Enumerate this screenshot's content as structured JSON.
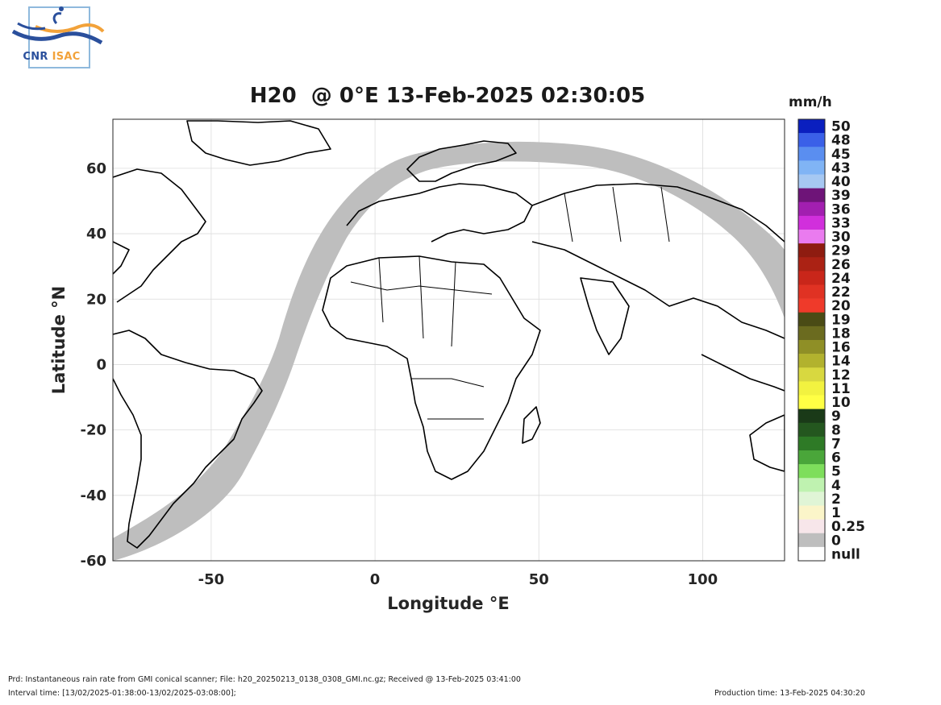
{
  "logo": {
    "text_part1": "CNR",
    "text_part2": "ISAC"
  },
  "title": "H20  @ 0°E 13-Feb-2025 02:30:05",
  "units": "mm/h",
  "map": {
    "xlabel": "Longitude °E",
    "ylabel": "Latitude °N",
    "xlim": [
      -80,
      125
    ],
    "ylim": [
      -60,
      75
    ],
    "xticks": [
      -50,
      0,
      50,
      100
    ],
    "yticks": [
      -60,
      -40,
      -20,
      0,
      20,
      40,
      60
    ],
    "grid": true,
    "swath_color": "#bebebe",
    "coast_color": "#000000"
  },
  "colorbar": {
    "labels": [
      "50",
      "48",
      "45",
      "43",
      "40",
      "39",
      "36",
      "33",
      "30",
      "29",
      "26",
      "24",
      "22",
      "20",
      "19",
      "18",
      "16",
      "14",
      "12",
      "11",
      "10",
      "9",
      "8",
      "7",
      "6",
      "5",
      "4",
      "2",
      "1",
      "0.25",
      "0",
      "null"
    ],
    "colors": [
      "#0a1fbf",
      "#3a60e8",
      "#5a8ef0",
      "#80b4f5",
      "#a6c8f2",
      "#6e1478",
      "#a21fb0",
      "#d12fdc",
      "#ea7bef",
      "#8e1c10",
      "#ab2214",
      "#c9261a",
      "#e03223",
      "#ef3a2a",
      "#4a4b15",
      "#6b6b1f",
      "#8f8f26",
      "#b2b22e",
      "#d8d840",
      "#f2f240",
      "#ffff44",
      "#1a3a18",
      "#24571f",
      "#2e7a26",
      "#4aa63a",
      "#7ede5c",
      "#bff2b0",
      "#e0f5d6",
      "#fbf5c9",
      "#f7e6ea",
      "#bebebe",
      "#ffffff"
    ]
  },
  "footer": {
    "line1": "Prd: Instantaneous rain rate from GMI conical scanner; File: h20_20250213_0138_0308_GMI.nc.gz; Received @ 13-Feb-2025 03:41:00",
    "line2": "Interval time: [13/02/2025-01:38:00-13/02/2025-03:08:00];",
    "production": "Production time: 13-Feb-2025 04:30:20"
  }
}
